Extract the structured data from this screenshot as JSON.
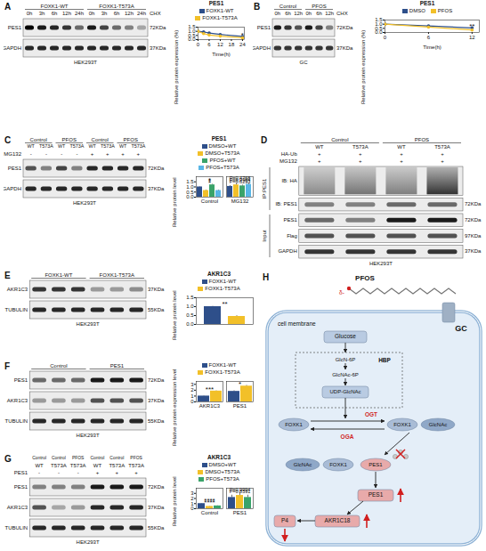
{
  "chart_data": [
    {
      "panel": "A",
      "type": "line",
      "title": "PES1",
      "x_label": "Time(h)",
      "y_label": "Relative protein expression (%)",
      "x": [
        0,
        3,
        6,
        12,
        24
      ],
      "xlim": [
        0,
        25
      ],
      "xticks": [
        0,
        6,
        12,
        18,
        24
      ],
      "ylim": [
        0,
        1.5
      ],
      "yticks": [
        {
          "value": 0,
          "label": "0.0"
        },
        {
          "value": 0.5,
          "label": "0.5"
        },
        {
          "value": 1,
          "label": "1.0"
        },
        {
          "value": 1.5,
          "label": "1.5"
        }
      ],
      "marker": "circle",
      "legend": "top",
      "series": [
        {
          "name": "FOXK1-WT",
          "color": "#2e4f8a",
          "values": [
            1,
            0.92,
            0.8,
            0.62,
            0.38
          ],
          "errors": [
            0,
            0.05,
            0.06,
            0.05,
            0.05
          ]
        },
        {
          "name": "FOXK1-T573A",
          "color": "#f2c029",
          "values": [
            1,
            0.72,
            0.55,
            0.42,
            0.22
          ],
          "errors": [
            0,
            0.06,
            0.05,
            0.05,
            0.04
          ]
        }
      ],
      "annotations": [
        {
          "text": "*",
          "x": 24,
          "y": 0.56
        }
      ]
    },
    {
      "panel": "B",
      "type": "line",
      "title": "PES1",
      "x_label": "Time(h)",
      "y_label": "Relative protein expression (%)",
      "x": [
        0,
        6,
        12
      ],
      "xlim": [
        0,
        13
      ],
      "xticks": [
        0,
        6,
        12
      ],
      "ylim": [
        0,
        1.5
      ],
      "yticks": [
        {
          "value": 0,
          "label": "0.0"
        },
        {
          "value": 0.5,
          "label": "0.5"
        },
        {
          "value": 1,
          "label": "1.0"
        },
        {
          "value": 1.5,
          "label": "1.5"
        }
      ],
      "marker": "circle",
      "legend": "top",
      "series": [
        {
          "name": "DMSO",
          "color": "#2e4f8a",
          "values": [
            1,
            0.8,
            0.55
          ],
          "errors": [
            0,
            0.04,
            0.05
          ]
        },
        {
          "name": "PFOS",
          "color": "#f2c029",
          "values": [
            1,
            0.65,
            0.3
          ],
          "errors": [
            0,
            0.05,
            0.04
          ]
        }
      ],
      "annotations": [
        {
          "text": "**",
          "x": 12,
          "y": 0.72
        }
      ]
    },
    {
      "panel": "C",
      "type": "bar",
      "title": "PES1",
      "y_label": "Relative protein level",
      "categories": [
        "Control",
        "MG132"
      ],
      "ylim": [
        0,
        2
      ],
      "yticks": [
        {
          "value": 0,
          "label": "0.0"
        },
        {
          "value": 0.5,
          "label": "0.5"
        },
        {
          "value": 1,
          "label": "1.0"
        },
        {
          "value": 1.5,
          "label": "1.5"
        }
      ],
      "legend": "top",
      "series": [
        {
          "name": "DMSO+WT",
          "color": "#2e4f8a",
          "values": [
            1,
            1.05
          ],
          "errors": [
            0.03,
            0.08
          ]
        },
        {
          "name": "DMSO+T573A",
          "color": "#f2c029",
          "values": [
            0.65,
            1.2
          ],
          "errors": [
            0.05,
            0.1
          ]
        },
        {
          "name": "PFOS+WT",
          "color": "#3aa36a",
          "values": [
            1.2,
            1.1
          ],
          "errors": [
            0.06,
            0.08
          ]
        },
        {
          "name": "PFOS+T573A",
          "color": "#59b6e6",
          "values": [
            0.65,
            1.25
          ],
          "errors": [
            0.05,
            0.1
          ]
        }
      ],
      "annotations": [
        {
          "text": "*",
          "category": "Control",
          "y": 1.4
        },
        {
          "text": "*",
          "category": "Control",
          "y": 1.55
        },
        {
          "text": "*",
          "category": "Control",
          "y": 1.7
        },
        {
          "text": "P=0.4768",
          "category": "MG132",
          "y": 1.84
        },
        {
          "text": "P=0.9964",
          "category": "MG132",
          "y": 1.67
        },
        {
          "text": "P=0.6293",
          "category": "MG132",
          "y": 1.5
        }
      ]
    },
    {
      "panel": "E",
      "type": "bar",
      "title": "AKR1C3",
      "y_label": "Relative protein level",
      "categories": [
        "FOXK1-WT",
        "FOXK1-T573A"
      ],
      "values": [
        1,
        0.45
      ],
      "errors": [
        0.02,
        0.04
      ],
      "colors": [
        "#2e4f8a",
        "#f2c029"
      ],
      "ylim": [
        0,
        1.5
      ],
      "yticks": [
        {
          "value": 0,
          "label": "0.0"
        },
        {
          "value": 0.5,
          "label": "0.5"
        },
        {
          "value": 1,
          "label": "1.0"
        },
        {
          "value": 1.5,
          "label": "1.5"
        }
      ],
      "tick_labels": "y",
      "legend": "top",
      "annotations": [
        {
          "text": "**",
          "y": 1.15
        }
      ]
    },
    {
      "panel": "F",
      "type": "bar",
      "y_label": "Relative protein expression level",
      "categories": [
        "AKR1C3",
        "PES1"
      ],
      "ylim": [
        0,
        3.5
      ],
      "yticks": [
        0,
        1,
        2,
        3
      ],
      "legend": "top",
      "series": [
        {
          "name": "FOXK1-WT",
          "color": "#2e4f8a",
          "values": [
            1,
            1.8
          ],
          "errors": [
            0.05,
            0.1
          ]
        },
        {
          "name": "FOXK1-T573A",
          "color": "#f2c029",
          "values": [
            1.85,
            2.7
          ],
          "errors": [
            0.05,
            0.12
          ]
        }
      ],
      "annotations": [
        {
          "text": "***",
          "category": "AKR1C3",
          "y": 2.15
        },
        {
          "text": "*",
          "category": "PES1",
          "y": 3.1
        }
      ]
    },
    {
      "panel": "G",
      "type": "bar",
      "title": "AKR1C3",
      "y_label": "Relative protein level",
      "categories": [
        "Control",
        "PES1"
      ],
      "ylim": [
        0,
        4
      ],
      "yticks": [
        0,
        1,
        2,
        3
      ],
      "legend": "top",
      "series": [
        {
          "name": "DMSO+WT",
          "color": "#2e4f8a",
          "values": [
            1,
            2.2
          ],
          "errors": [
            0.03,
            0.45
          ]
        },
        {
          "name": "DMSO+T573A",
          "color": "#f2c029",
          "values": [
            0.45,
            2.6
          ],
          "errors": [
            0.03,
            0.5
          ]
        },
        {
          "name": "PFOS+T573A",
          "color": "#3aa36a",
          "values": [
            0.55,
            2.2
          ],
          "errors": [
            0.03,
            0.45
          ]
        }
      ],
      "annotations": [
        {
          "text": "****",
          "category": "Control",
          "y": 1.25
        },
        {
          "text": "****",
          "category": "Control",
          "y": 1.55
        },
        {
          "text": "P=0.9994",
          "category": "PES1",
          "y": 3.72
        },
        {
          "text": "P=0.8591",
          "category": "PES1",
          "y": 3.35
        }
      ]
    }
  ],
  "blots": [
    {
      "letter": "A",
      "headers": [
        {
          "cells": [
            {
              "text": "FOXK1-WT",
              "span": 5
            },
            {
              "text": "FOXK1-T573A",
              "span": 5
            }
          ]
        },
        {
          "cells": [
            "0h",
            "3h",
            "6h",
            "12h",
            "24h",
            "0h",
            "3h",
            "6h",
            "12h",
            "24h"
          ],
          "right_label": "CHX"
        }
      ],
      "rows": [
        {
          "name": "PES1",
          "kda": "72KDa",
          "intensity": [
            1,
            0.9,
            0.85,
            0.8,
            0.6,
            0.9,
            0.75,
            0.6,
            0.5,
            0.35
          ]
        },
        {
          "name": "GAPDH",
          "kda": "37KDa",
          "intensity": [
            0.85,
            0.85,
            0.85,
            0.85,
            0.85,
            0.85,
            0.85,
            0.85,
            0.85,
            0.85
          ]
        }
      ],
      "cell": "HEK293T"
    },
    {
      "letter": "B",
      "headers": [
        {
          "cells": [
            {
              "text": "Control",
              "span": 3
            },
            {
              "text": "PFOS",
              "span": 3
            }
          ]
        },
        {
          "cells": [
            "0h",
            "6h",
            "12h",
            "0h",
            "6h",
            "12h"
          ],
          "right_label": "CHX"
        }
      ],
      "rows": [
        {
          "name": "PES1",
          "kda": "72KDa",
          "intensity": [
            0.9,
            0.8,
            0.7,
            0.9,
            0.75,
            0.5
          ]
        },
        {
          "name": "GAPDH",
          "kda": "37KDa",
          "intensity": [
            0.8,
            0.8,
            0.8,
            0.8,
            0.8,
            0.8
          ]
        }
      ],
      "cell": "GC"
    },
    {
      "letter": "C",
      "headers": [
        {
          "cells": [
            {
              "text": "Control",
              "span": 2
            },
            {
              "text": "PFOS",
              "span": 2
            },
            {
              "text": "Control",
              "span": 2
            },
            {
              "text": "PFOS",
              "span": 2
            }
          ]
        },
        {
          "cells": [
            "WT",
            "T573A",
            "WT",
            "T573A",
            "WT",
            "T573A",
            "WT",
            "T573A"
          ]
        },
        {
          "label": "MG132",
          "cells": [
            "-",
            "-",
            "-",
            "-",
            "+",
            "+",
            "+",
            "+"
          ]
        }
      ],
      "rows": [
        {
          "name": "PES1",
          "kda": "72KDa",
          "intensity": [
            0.7,
            0.5,
            0.75,
            0.5,
            0.85,
            0.85,
            0.85,
            0.85
          ]
        },
        {
          "name": "GAPDH",
          "kda": "37KDa",
          "intensity": [
            0.85,
            0.85,
            0.85,
            0.85,
            0.85,
            0.85,
            0.85,
            0.85
          ]
        }
      ],
      "cell": "HEK293T"
    },
    {
      "letter": "D",
      "headers": [
        {
          "cells": [
            {
              "text": "Control",
              "span": 2
            },
            {
              "text": "PFOS",
              "span": 2
            }
          ]
        },
        {
          "cells": [
            "WT",
            "T573A",
            "WT",
            "T573A"
          ]
        },
        {
          "label": "HA-Ub",
          "cells": [
            "+",
            "+",
            "+",
            "+"
          ]
        },
        {
          "label": "MG132",
          "cells": [
            "+",
            "+",
            "+",
            "+"
          ]
        }
      ],
      "rows": [
        {
          "name": "IB: HA",
          "group": "IP:PES1",
          "style": "smear",
          "intensity": [
            0.45,
            0.55,
            0.5,
            0.85
          ]
        },
        {
          "name": "IB: PES1",
          "kda": "72KDa",
          "group": "IP:PES1",
          "intensity": [
            0.5,
            0.5,
            0.6,
            0.6
          ]
        },
        {
          "name": "PES1",
          "kda": "72KDa",
          "group": "Input",
          "intensity": [
            0.6,
            0.5,
            0.9,
            0.9
          ]
        },
        {
          "name": "Flag",
          "kda": "97KDa",
          "group": "Input",
          "intensity": [
            0.7,
            0.7,
            0.7,
            0.7
          ]
        },
        {
          "name": "GAPDH",
          "kda": "37KDa",
          "group": "Input",
          "intensity": [
            0.8,
            0.8,
            0.8,
            0.8
          ]
        }
      ],
      "cell": "HEK293T"
    },
    {
      "letter": "E",
      "headers": [
        {
          "cells": [
            {
              "text": "FOXK1-WT",
              "span": 3
            },
            {
              "text": "FOXK1-T573A",
              "span": 3
            }
          ]
        }
      ],
      "rows": [
        {
          "name": "AKR1C3",
          "kda": "37KDa",
          "intensity": [
            0.8,
            0.8,
            0.8,
            0.4,
            0.4,
            0.45
          ]
        },
        {
          "name": "TUBULIN",
          "kda": "55KDa",
          "intensity": [
            0.85,
            0.85,
            0.85,
            0.85,
            0.85,
            0.85
          ]
        }
      ],
      "cell": "HEK293T"
    },
    {
      "letter": "F",
      "headers": [
        {
          "cells": [
            {
              "text": "Control",
              "span": 3
            },
            {
              "text": "PES1",
              "span": 3
            }
          ]
        }
      ],
      "rows": [
        {
          "name": "PES1",
          "kda": "72KDa",
          "intensity": [
            0.6,
            0.6,
            0.6,
            0.9,
            0.9,
            0.9
          ]
        },
        {
          "name": "AKR1C3",
          "kda": "37KDa",
          "intensity": [
            0.4,
            0.4,
            0.4,
            0.7,
            0.7,
            0.7
          ]
        },
        {
          "name": "TUBULIN",
          "kda": "55KDa",
          "intensity": [
            0.85,
            0.85,
            0.85,
            0.85,
            0.85,
            0.85
          ]
        }
      ],
      "cell": "HEK293T"
    },
    {
      "letter": "G",
      "headers": [
        {
          "cells": [
            "Control",
            "Control",
            "PFOS",
            "Control",
            "Control",
            "PFOS"
          ]
        },
        {
          "cells": [
            "WT",
            "T573A",
            "T573A",
            "WT",
            "T573A",
            "T573A"
          ]
        },
        {
          "label": "PES1",
          "cells": [
            "-",
            "-",
            "-",
            "+",
            "+",
            "+"
          ]
        }
      ],
      "rows": [
        {
          "name": "PES1",
          "kda": "72KDa",
          "intensity": [
            0.5,
            0.5,
            0.5,
            0.9,
            0.9,
            0.9
          ]
        },
        {
          "name": "AKR1C3",
          "kda": "37KDa",
          "intensity": [
            0.7,
            0.35,
            0.4,
            0.85,
            0.85,
            0.85
          ]
        },
        {
          "name": "TUBULIN",
          "kda": "55KDa",
          "intensity": [
            0.85,
            0.85,
            0.85,
            0.85,
            0.85,
            0.85
          ]
        }
      ],
      "cell": "HEK293T"
    }
  ],
  "diagram": {
    "letter": "H",
    "labels": {
      "pfos": "PFOS",
      "delta": "δ-",
      "membrane": "cell membrane",
      "cell": "GC",
      "glucose": "Glucose",
      "glcn6p": "GlcN-6P",
      "glcnac6p": "GlcNAc-6P",
      "udp": "UDP-GlcNAc",
      "hbp": "HBP",
      "ogt": "OGT",
      "oga": "OGA",
      "foxk1_free": "FOXK1",
      "foxk1_mod": "FOXK1",
      "glcnac_mod": "GlcNAc",
      "glcnac_complex": "GlcNAc",
      "foxk1_complex": "FOXK1",
      "pes1_complex": "PES1",
      "pes1_up": "PES1",
      "akr": "AKR1C18",
      "p4": "P4"
    }
  }
}
